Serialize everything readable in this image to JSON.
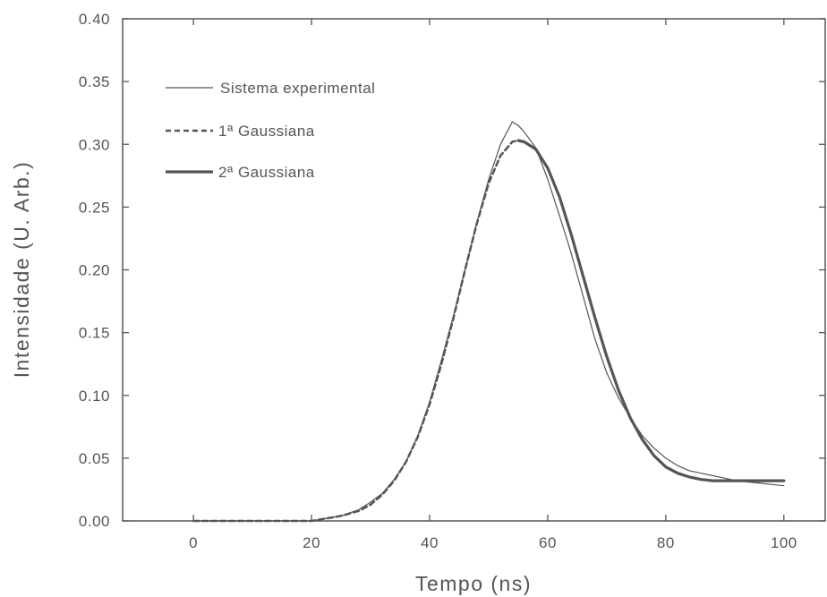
{
  "chart_data": {
    "type": "line",
    "title": "",
    "xlabel": "Tempo (ns)",
    "ylabel": "Intensidade (U. Arb.)",
    "xlim": [
      -12,
      107
    ],
    "ylim": [
      0,
      0.4
    ],
    "x_ticks": [
      0,
      20,
      40,
      60,
      80,
      100
    ],
    "y_ticks": [
      0.0,
      0.05,
      0.1,
      0.15,
      0.2,
      0.25,
      0.3,
      0.35,
      0.4
    ],
    "x_tick_labels": [
      "0",
      "20",
      "40",
      "60",
      "80",
      "100"
    ],
    "y_tick_labels": [
      "0.00",
      "0.05",
      "0.10",
      "0.15",
      "0.20",
      "0.25",
      "0.30",
      "0.35",
      "0.40"
    ],
    "grid": false,
    "legend_position": "top-left",
    "series": [
      {
        "name": "Sistema experimental",
        "style": "solid-thin",
        "x": [
          0,
          10,
          20,
          25,
          28,
          30,
          32,
          34,
          36,
          38,
          40,
          42,
          44,
          46,
          48,
          50,
          52,
          54,
          55,
          56,
          58,
          60,
          62,
          64,
          66,
          68,
          70,
          72,
          74,
          76,
          78,
          80,
          82,
          84,
          86,
          88,
          90,
          92,
          94,
          96,
          98,
          100
        ],
        "y": [
          0.0,
          0.0,
          0.0,
          0.004,
          0.009,
          0.015,
          0.022,
          0.033,
          0.047,
          0.068,
          0.095,
          0.128,
          0.163,
          0.2,
          0.238,
          0.272,
          0.3,
          0.318,
          0.315,
          0.31,
          0.297,
          0.272,
          0.243,
          0.213,
          0.179,
          0.145,
          0.118,
          0.098,
          0.082,
          0.068,
          0.058,
          0.05,
          0.044,
          0.04,
          0.038,
          0.036,
          0.034,
          0.032,
          0.031,
          0.03,
          0.029,
          0.028
        ]
      },
      {
        "name": "1ª Gaussiana",
        "style": "dashed",
        "x": [
          0,
          10,
          20,
          25,
          28,
          30,
          32,
          34,
          36,
          38,
          40,
          42,
          44,
          46,
          48,
          50,
          52,
          54,
          55
        ],
        "y": [
          0.0,
          0.0,
          0.0,
          0.004,
          0.008,
          0.013,
          0.021,
          0.032,
          0.047,
          0.067,
          0.093,
          0.125,
          0.161,
          0.2,
          0.237,
          0.269,
          0.291,
          0.302,
          0.303
        ]
      },
      {
        "name": "2ª Gaussiana",
        "style": "solid-thick",
        "x": [
          55,
          56,
          58,
          60,
          62,
          64,
          66,
          68,
          70,
          72,
          74,
          76,
          78,
          80,
          82,
          84,
          86,
          88,
          90,
          95,
          100
        ],
        "y": [
          0.303,
          0.302,
          0.296,
          0.281,
          0.258,
          0.228,
          0.195,
          0.162,
          0.131,
          0.104,
          0.082,
          0.065,
          0.052,
          0.043,
          0.038,
          0.035,
          0.033,
          0.032,
          0.032,
          0.032,
          0.032
        ]
      }
    ]
  }
}
